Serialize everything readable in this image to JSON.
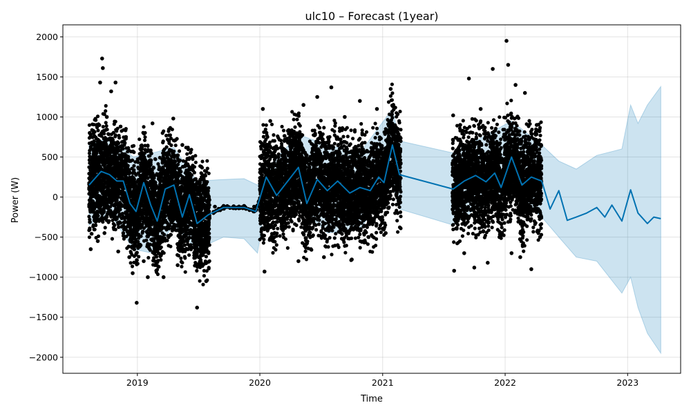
{
  "chart_data": {
    "type": "scatter",
    "title": "ulc10 – Forecast (1year)",
    "xlabel": "Time",
    "ylabel": "Power (W)",
    "xlim": [
      "2018-05-24",
      "2023-06-08"
    ],
    "ylim": [
      -2200,
      2150
    ],
    "x_ticks": [
      {
        "date": "2019-01-01",
        "label": "2019"
      },
      {
        "date": "2020-01-01",
        "label": "2020"
      },
      {
        "date": "2021-01-01",
        "label": "2021"
      },
      {
        "date": "2022-01-01",
        "label": "2022"
      },
      {
        "date": "2023-01-01",
        "label": "2023"
      }
    ],
    "y_ticks": [
      {
        "value": 2000,
        "label": "2000"
      },
      {
        "value": 1500,
        "label": "1500"
      },
      {
        "value": 1000,
        "label": "1000"
      },
      {
        "value": 500,
        "label": "500"
      },
      {
        "value": 0,
        "label": "0"
      },
      {
        "value": -500,
        "label": "−500"
      },
      {
        "value": -1000,
        "label": "−1000"
      },
      {
        "value": -1500,
        "label": "−1500"
      },
      {
        "value": -2000,
        "label": "−2000"
      }
    ],
    "grid": true,
    "colors": {
      "observed": "#000000",
      "forecast": "#0072b2",
      "interval": "#0072b2"
    },
    "series": [
      {
        "kind": "observed",
        "segments": [
          {
            "start": "2018-08-10",
            "end": "2019-08-05",
            "points": [
              {
                "x": "2018-08-12",
                "y": 800
              },
              {
                "x": "2018-08-15",
                "y": -650
              },
              {
                "x": "2018-08-20",
                "y": 350
              },
              {
                "x": "2018-08-25",
                "y": -150
              },
              {
                "x": "2018-09-01",
                "y": 900
              },
              {
                "x": "2018-09-05",
                "y": -550
              },
              {
                "x": "2018-09-12",
                "y": 1430
              },
              {
                "x": "2018-09-18",
                "y": 1730
              },
              {
                "x": "2018-09-20",
                "y": 1610
              },
              {
                "x": "2018-09-25",
                "y": -450
              },
              {
                "x": "2018-10-02",
                "y": 1000
              },
              {
                "x": "2018-10-08",
                "y": -300
              },
              {
                "x": "2018-10-15",
                "y": 1320
              },
              {
                "x": "2018-10-20",
                "y": 600
              },
              {
                "x": "2018-10-28",
                "y": 1430
              },
              {
                "x": "2018-11-05",
                "y": -680
              },
              {
                "x": "2018-11-12",
                "y": 880
              },
              {
                "x": "2018-11-20",
                "y": -450
              },
              {
                "x": "2018-11-28",
                "y": 750
              },
              {
                "x": "2018-12-08",
                "y": -750
              },
              {
                "x": "2018-12-18",
                "y": -950
              },
              {
                "x": "2018-12-30",
                "y": -1320
              },
              {
                "x": "2019-01-10",
                "y": 600
              },
              {
                "x": "2019-01-20",
                "y": -800
              },
              {
                "x": "2019-02-01",
                "y": -1000
              },
              {
                "x": "2019-02-15",
                "y": 920
              },
              {
                "x": "2019-03-05",
                "y": -700
              },
              {
                "x": "2019-03-20",
                "y": -1000
              },
              {
                "x": "2019-04-05",
                "y": 700
              },
              {
                "x": "2019-04-18",
                "y": 980
              },
              {
                "x": "2019-05-01",
                "y": -850
              },
              {
                "x": "2019-05-15",
                "y": 650
              },
              {
                "x": "2019-06-01",
                "y": -650
              },
              {
                "x": "2019-06-15",
                "y": 500
              },
              {
                "x": "2019-06-28",
                "y": -1380
              },
              {
                "x": "2019-07-10",
                "y": 380
              },
              {
                "x": "2019-07-25",
                "y": -1050
              }
            ]
          },
          {
            "start": "2019-08-15",
            "end": "2019-12-31",
            "points": [
              {
                "x": "2019-08-20",
                "y": -120
              },
              {
                "x": "2019-09-15",
                "y": -110
              },
              {
                "x": "2019-10-15",
                "y": -115
              },
              {
                "x": "2019-11-15",
                "y": -110
              },
              {
                "x": "2019-12-15",
                "y": -120
              }
            ]
          },
          {
            "start": "2020-01-01",
            "end": "2021-02-25",
            "points": [
              {
                "x": "2020-01-10",
                "y": 1100
              },
              {
                "x": "2020-01-15",
                "y": -930
              },
              {
                "x": "2020-02-01",
                "y": 950
              },
              {
                "x": "2020-02-10",
                "y": -550
              },
              {
                "x": "2020-02-25",
                "y": 500
              },
              {
                "x": "2020-04-25",
                "y": -800
              },
              {
                "x": "2020-05-10",
                "y": 1150
              },
              {
                "x": "2020-06-01",
                "y": -650
              },
              {
                "x": "2020-06-20",
                "y": 1250
              },
              {
                "x": "2020-07-10",
                "y": -750
              },
              {
                "x": "2020-08-01",
                "y": 1370
              },
              {
                "x": "2020-08-20",
                "y": -600
              },
              {
                "x": "2020-09-10",
                "y": 1000
              },
              {
                "x": "2020-10-01",
                "y": -780
              },
              {
                "x": "2020-10-25",
                "y": 1200
              },
              {
                "x": "2020-11-20",
                "y": -500
              },
              {
                "x": "2020-12-15",
                "y": 1100
              },
              {
                "x": "2021-01-10",
                "y": -450
              },
              {
                "x": "2021-01-25",
                "y": 1350
              },
              {
                "x": "2021-02-15",
                "y": -200
              }
            ]
          },
          {
            "start": "2021-07-28",
            "end": "2022-04-20",
            "points": [
              {
                "x": "2021-07-30",
                "y": 1020
              },
              {
                "x": "2021-08-02",
                "y": -920
              },
              {
                "x": "2021-08-20",
                "y": 900
              },
              {
                "x": "2021-09-01",
                "y": -700
              },
              {
                "x": "2021-09-15",
                "y": 1480
              },
              {
                "x": "2021-10-01",
                "y": -880
              },
              {
                "x": "2021-10-20",
                "y": 1100
              },
              {
                "x": "2021-11-10",
                "y": -820
              },
              {
                "x": "2021-11-25",
                "y": 1600
              },
              {
                "x": "2021-12-15",
                "y": -500
              },
              {
                "x": "2022-01-05",
                "y": 1950
              },
              {
                "x": "2022-01-10",
                "y": 1650
              },
              {
                "x": "2022-01-20",
                "y": -700
              },
              {
                "x": "2022-02-01",
                "y": 1400
              },
              {
                "x": "2022-02-15",
                "y": -750
              },
              {
                "x": "2022-03-01",
                "y": 1300
              },
              {
                "x": "2022-03-20",
                "y": -900
              },
              {
                "x": "2022-04-05",
                "y": 900
              },
              {
                "x": "2022-04-15",
                "y": -500
              }
            ]
          }
        ]
      },
      {
        "kind": "forecast",
        "points": [
          {
            "x": "2018-08-10",
            "y": 150
          },
          {
            "x": "2018-09-15",
            "y": 320
          },
          {
            "x": "2018-10-10",
            "y": 280
          },
          {
            "x": "2018-11-01",
            "y": 200
          },
          {
            "x": "2018-11-20",
            "y": 200
          },
          {
            "x": "2018-12-10",
            "y": -80
          },
          {
            "x": "2018-12-28",
            "y": -180
          },
          {
            "x": "2019-01-20",
            "y": 180
          },
          {
            "x": "2019-02-10",
            "y": -100
          },
          {
            "x": "2019-03-01",
            "y": -300
          },
          {
            "x": "2019-03-25",
            "y": 100
          },
          {
            "x": "2019-04-20",
            "y": 150
          },
          {
            "x": "2019-05-15",
            "y": -250
          },
          {
            "x": "2019-06-05",
            "y": 30
          },
          {
            "x": "2019-06-28",
            "y": -330
          },
          {
            "x": "2019-08-01",
            "y": -220
          },
          {
            "x": "2019-09-15",
            "y": -130
          },
          {
            "x": "2019-11-15",
            "y": -130
          },
          {
            "x": "2019-12-20",
            "y": -180
          },
          {
            "x": "2020-01-20",
            "y": 250
          },
          {
            "x": "2020-02-20",
            "y": 20
          },
          {
            "x": "2020-04-25",
            "y": 370
          },
          {
            "x": "2020-05-20",
            "y": -80
          },
          {
            "x": "2020-06-20",
            "y": 220
          },
          {
            "x": "2020-07-20",
            "y": 80
          },
          {
            "x": "2020-08-20",
            "y": 200
          },
          {
            "x": "2020-09-25",
            "y": 50
          },
          {
            "x": "2020-10-25",
            "y": 120
          },
          {
            "x": "2020-11-25",
            "y": 80
          },
          {
            "x": "2020-12-20",
            "y": 250
          },
          {
            "x": "2021-01-05",
            "y": 180
          },
          {
            "x": "2021-01-30",
            "y": 650
          },
          {
            "x": "2021-02-20",
            "y": 280
          },
          {
            "x": "2021-07-30",
            "y": 100
          },
          {
            "x": "2021-09-01",
            "y": 200
          },
          {
            "x": "2021-10-05",
            "y": 270
          },
          {
            "x": "2021-11-05",
            "y": 190
          },
          {
            "x": "2021-12-01",
            "y": 300
          },
          {
            "x": "2021-12-20",
            "y": 120
          },
          {
            "x": "2022-01-20",
            "y": 500
          },
          {
            "x": "2022-02-20",
            "y": 150
          },
          {
            "x": "2022-03-20",
            "y": 250
          },
          {
            "x": "2022-04-20",
            "y": 200
          },
          {
            "x": "2022-05-15",
            "y": -150
          },
          {
            "x": "2022-06-10",
            "y": 80
          },
          {
            "x": "2022-07-05",
            "y": -290
          },
          {
            "x": "2022-08-01",
            "y": -250
          },
          {
            "x": "2022-09-01",
            "y": -200
          },
          {
            "x": "2022-10-01",
            "y": -130
          },
          {
            "x": "2022-10-25",
            "y": -250
          },
          {
            "x": "2022-11-15",
            "y": -100
          },
          {
            "x": "2022-12-15",
            "y": -300
          },
          {
            "x": "2023-01-10",
            "y": 90
          },
          {
            "x": "2023-02-01",
            "y": -200
          },
          {
            "x": "2023-03-01",
            "y": -330
          },
          {
            "x": "2023-03-20",
            "y": -250
          },
          {
            "x": "2023-04-10",
            "y": -270
          }
        ]
      },
      {
        "kind": "interval",
        "points": [
          {
            "x": "2018-08-10",
            "upper": 650,
            "lower": -350
          },
          {
            "x": "2018-10-10",
            "upper": 750,
            "lower": -200
          },
          {
            "x": "2018-12-20",
            "upper": 500,
            "lower": -650
          },
          {
            "x": "2019-02-15",
            "upper": 550,
            "lower": -700
          },
          {
            "x": "2019-04-20",
            "upper": 620,
            "lower": -350
          },
          {
            "x": "2019-06-28",
            "upper": 200,
            "lower": -650
          },
          {
            "x": "2019-09-15",
            "upper": 220,
            "lower": -500
          },
          {
            "x": "2019-11-15",
            "upper": 230,
            "lower": -520
          },
          {
            "x": "2019-12-25",
            "upper": 150,
            "lower": -700
          },
          {
            "x": "2020-01-20",
            "upper": 350,
            "lower": 0
          },
          {
            "x": "2020-04-25",
            "upper": 780,
            "lower": -100
          },
          {
            "x": "2020-07-20",
            "upper": 650,
            "lower": -450
          },
          {
            "x": "2020-10-25",
            "upper": 550,
            "lower": -400
          },
          {
            "x": "2021-01-30",
            "upper": 1100,
            "lower": 150
          },
          {
            "x": "2021-02-20",
            "upper": 700,
            "lower": -150
          },
          {
            "x": "2021-07-30",
            "upper": 550,
            "lower": -350
          },
          {
            "x": "2021-10-05",
            "upper": 700,
            "lower": -150
          },
          {
            "x": "2022-01-20",
            "upper": 950,
            "lower": 50
          },
          {
            "x": "2022-04-20",
            "upper": 650,
            "lower": -250
          },
          {
            "x": "2022-06-10",
            "upper": 450,
            "lower": -500
          },
          {
            "x": "2022-08-01",
            "upper": 350,
            "lower": -750
          },
          {
            "x": "2022-10-01",
            "upper": 520,
            "lower": -800
          },
          {
            "x": "2022-12-15",
            "upper": 600,
            "lower": -1200
          },
          {
            "x": "2023-01-10",
            "upper": 1150,
            "lower": -1000
          },
          {
            "x": "2023-02-01",
            "upper": 920,
            "lower": -1380
          },
          {
            "x": "2023-03-01",
            "upper": 1150,
            "lower": -1700
          },
          {
            "x": "2023-04-10",
            "upper": 1380,
            "lower": -1950
          }
        ]
      }
    ]
  }
}
